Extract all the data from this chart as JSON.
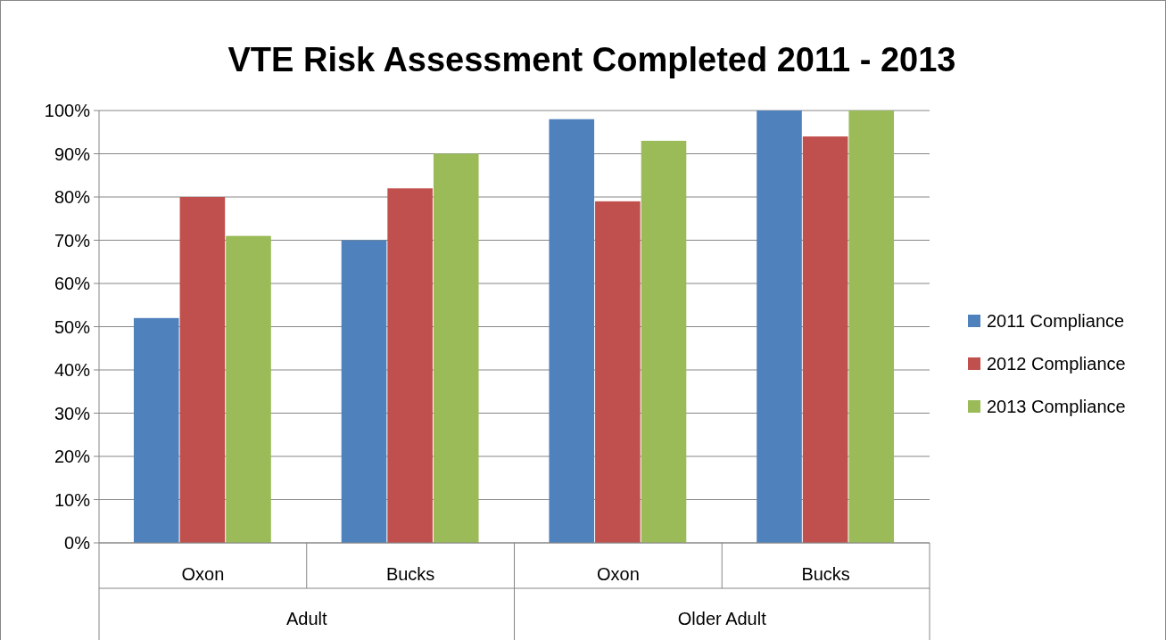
{
  "chart_data": {
    "type": "bar",
    "title": "VTE Risk Assessment Completed 2011 - 2013",
    "categories": [
      "Oxon",
      "Bucks",
      "Oxon",
      "Bucks"
    ],
    "series": [
      {
        "name": "2011 Compliance",
        "color": "#4f81bd",
        "values": [
          52,
          70,
          98,
          100
        ]
      },
      {
        "name": "2012 Compliance",
        "color": "#c0504d",
        "values": [
          80,
          82,
          79,
          94
        ]
      },
      {
        "name": "2013 Compliance",
        "color": "#9bbb59",
        "values": [
          71,
          90,
          93,
          100
        ]
      }
    ],
    "annotations": [
      "Adult",
      "Older Adult"
    ],
    "ylim": [
      0,
      100
    ],
    "yticks": [
      {
        "value": 0,
        "label": "0%"
      },
      {
        "value": 10,
        "label": "10%"
      },
      {
        "value": 20,
        "label": "20%"
      },
      {
        "value": 30,
        "label": "30%"
      },
      {
        "value": 40,
        "label": "40%"
      },
      {
        "value": 50,
        "label": "50%"
      },
      {
        "value": 60,
        "label": "60%"
      },
      {
        "value": 70,
        "label": "70%"
      },
      {
        "value": 80,
        "label": "80%"
      },
      {
        "value": 90,
        "label": "90%"
      },
      {
        "value": 100,
        "label": "100%"
      }
    ],
    "grid": "y",
    "legend": "right"
  }
}
